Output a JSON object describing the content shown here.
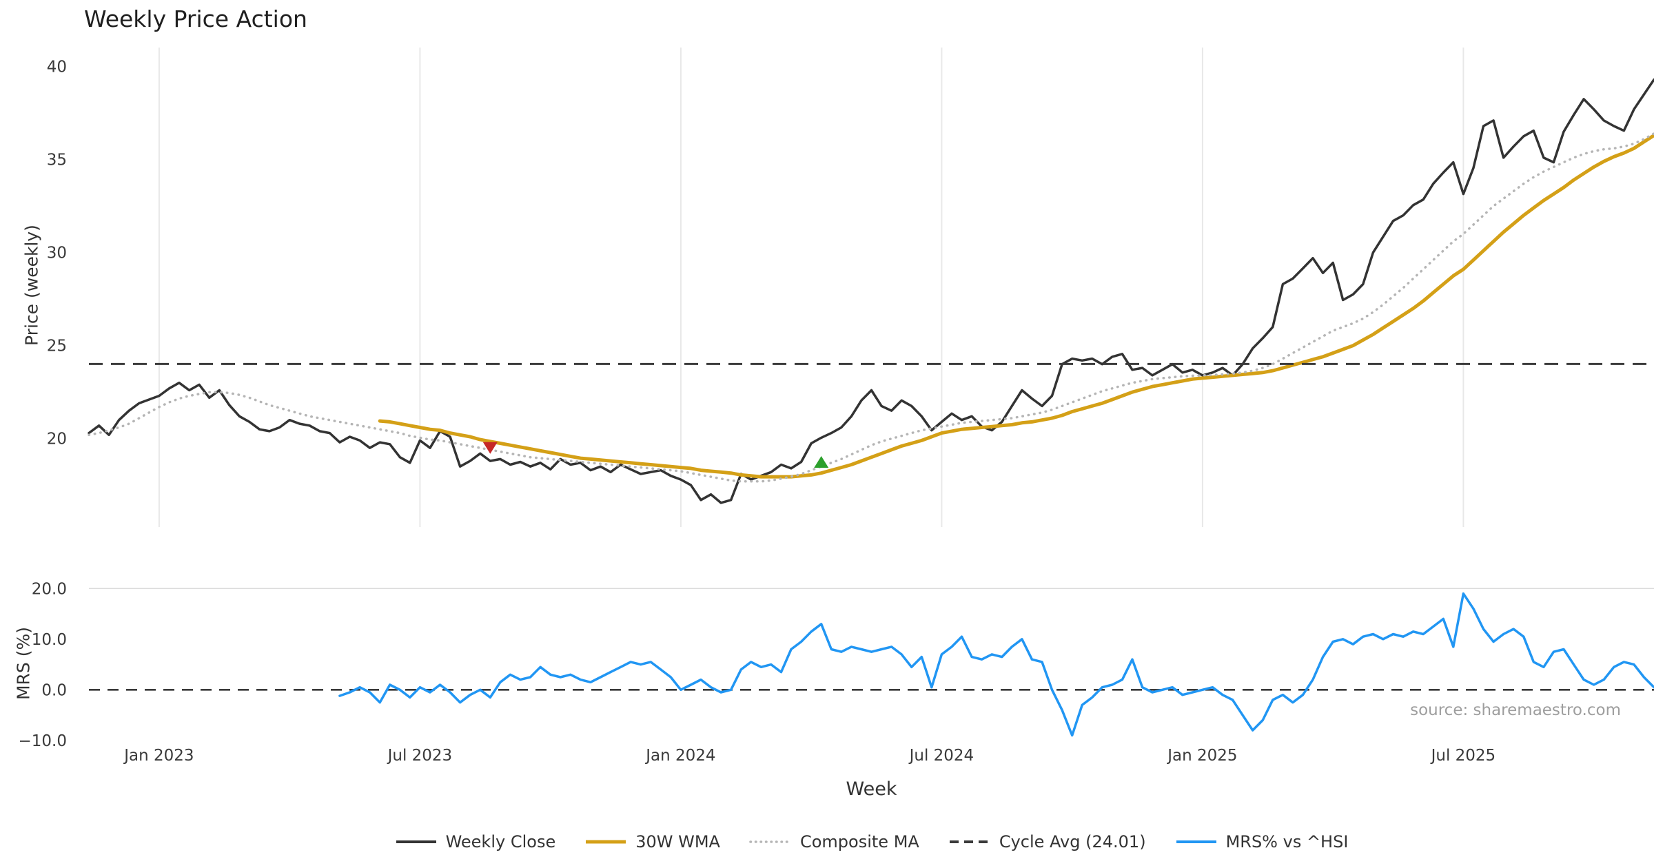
{
  "chart_data": {
    "type": "line",
    "title": "Weekly Price Action",
    "xlabel": "Week",
    "source": "source: sharemaestro.com",
    "legend_position": "bottom-center",
    "grid": "vertical-major-only",
    "weeks_total": 157,
    "x_ticks": [
      {
        "index": 7,
        "label": "Jan 2023"
      },
      {
        "index": 33,
        "label": "Jul 2023"
      },
      {
        "index": 59,
        "label": "Jan 2024"
      },
      {
        "index": 85,
        "label": "Jul 2024"
      },
      {
        "index": 111,
        "label": "Jan 2025"
      },
      {
        "index": 137,
        "label": "Jul 2025"
      }
    ],
    "panels": {
      "price": {
        "ylabel": "Price (weekly)",
        "ylim": [
          15.25,
          41.02
        ],
        "yticks": [
          20,
          25,
          30,
          35,
          40
        ],
        "ytick_labels": [
          "20",
          "25",
          "30",
          "35",
          "40"
        ]
      },
      "mrs": {
        "ylabel": "MRS (%)",
        "ylim": [
          -10.84,
          21.27
        ],
        "yticks": [
          -10,
          0,
          10,
          20
        ],
        "ytick_labels": [
          "−10.0",
          "0.0",
          "10.0",
          "20.0"
        ],
        "zero_line": "dashed",
        "gridline_at": 20
      }
    },
    "series": [
      {
        "name": "Weekly Close",
        "panel": "price",
        "color": "#333333",
        "style": "solid",
        "width": 3.5,
        "start": 0,
        "values": [
          20.3,
          20.7,
          20.2,
          21.0,
          21.5,
          21.9,
          22.1,
          22.3,
          22.7,
          23.0,
          22.6,
          22.9,
          22.2,
          22.6,
          21.8,
          21.2,
          20.9,
          20.5,
          20.4,
          20.6,
          21.0,
          20.8,
          20.7,
          20.4,
          20.3,
          19.8,
          20.1,
          19.9,
          19.5,
          19.8,
          19.7,
          19.0,
          18.7,
          19.9,
          19.5,
          20.4,
          20.1,
          18.5,
          18.8,
          19.2,
          18.8,
          18.9,
          18.6,
          18.75,
          18.5,
          18.7,
          18.35,
          18.9,
          18.6,
          18.7,
          18.3,
          18.5,
          18.2,
          18.6,
          18.35,
          18.1,
          18.2,
          18.3,
          18.0,
          17.8,
          17.5,
          16.7,
          17.0,
          16.55,
          16.7,
          18.1,
          17.8,
          18.0,
          18.2,
          18.6,
          18.4,
          18.75,
          19.75,
          20.05,
          20.3,
          20.6,
          21.2,
          22.05,
          22.6,
          21.75,
          21.5,
          22.05,
          21.75,
          21.2,
          20.45,
          20.9,
          21.35,
          21.0,
          21.2,
          20.65,
          20.45,
          20.9,
          21.75,
          22.6,
          22.15,
          21.75,
          22.3,
          24.0,
          24.3,
          24.2,
          24.3,
          24.0,
          24.4,
          24.55,
          23.7,
          23.8,
          23.4,
          23.7,
          24.0,
          23.55,
          23.7,
          23.4,
          23.55,
          23.8,
          23.4,
          24.0,
          24.85,
          25.4,
          26.0,
          28.3,
          28.6,
          29.15,
          29.7,
          28.9,
          29.45,
          27.45,
          27.75,
          28.3,
          30.0,
          30.85,
          31.7,
          32.0,
          32.55,
          32.85,
          33.7,
          34.3,
          34.85,
          33.15,
          34.55,
          36.8,
          37.1,
          35.1,
          35.7,
          36.25,
          36.55,
          35.1,
          34.85,
          36.5,
          37.4,
          38.25,
          37.7,
          37.1,
          36.8,
          36.55,
          37.7,
          38.5,
          39.3
        ]
      },
      {
        "name": "30W WMA",
        "panel": "price",
        "color": "#D4A017",
        "style": "solid",
        "width": 5,
        "start": 29,
        "values": [
          20.95,
          20.9,
          20.8,
          20.7,
          20.6,
          20.5,
          20.45,
          20.3,
          20.2,
          20.1,
          19.95,
          19.85,
          19.75,
          19.65,
          19.55,
          19.45,
          19.35,
          19.25,
          19.15,
          19.05,
          18.95,
          18.9,
          18.85,
          18.8,
          18.75,
          18.7,
          18.65,
          18.6,
          18.55,
          18.5,
          18.45,
          18.4,
          18.3,
          18.25,
          18.2,
          18.15,
          18.05,
          18.0,
          17.95,
          17.95,
          17.95,
          17.95,
          18.0,
          18.05,
          18.15,
          18.3,
          18.45,
          18.6,
          18.8,
          19.0,
          19.2,
          19.4,
          19.6,
          19.75,
          19.9,
          20.1,
          20.3,
          20.4,
          20.5,
          20.55,
          20.6,
          20.65,
          20.7,
          20.75,
          20.85,
          20.9,
          21.0,
          21.1,
          21.25,
          21.45,
          21.6,
          21.75,
          21.9,
          22.1,
          22.3,
          22.5,
          22.65,
          22.8,
          22.9,
          23.0,
          23.1,
          23.2,
          23.25,
          23.3,
          23.35,
          23.4,
          23.45,
          23.5,
          23.55,
          23.65,
          23.8,
          23.95,
          24.1,
          24.25,
          24.4,
          24.6,
          24.8,
          25.0,
          25.3,
          25.6,
          25.95,
          26.3,
          26.65,
          27.0,
          27.4,
          27.85,
          28.3,
          28.75,
          29.1,
          29.6,
          30.1,
          30.6,
          31.1,
          31.55,
          32.0,
          32.4,
          32.8,
          33.15,
          33.5,
          33.9,
          34.25,
          34.6,
          34.9,
          35.15,
          35.35,
          35.6,
          35.95,
          36.3
        ]
      },
      {
        "name": "Composite MA",
        "panel": "price",
        "color": "#B5B5B5",
        "style": "dotted",
        "width": 3.5,
        "start": 0,
        "values": [
          20.2,
          20.3,
          20.45,
          20.6,
          20.8,
          21.1,
          21.4,
          21.7,
          21.95,
          22.15,
          22.3,
          22.4,
          22.5,
          22.5,
          22.45,
          22.35,
          22.2,
          22.0,
          21.8,
          21.65,
          21.5,
          21.35,
          21.2,
          21.1,
          21.0,
          20.9,
          20.8,
          20.7,
          20.6,
          20.5,
          20.4,
          20.3,
          20.15,
          20.05,
          19.95,
          19.9,
          19.8,
          19.7,
          19.6,
          19.5,
          19.4,
          19.3,
          19.2,
          19.1,
          19.0,
          18.95,
          18.9,
          18.85,
          18.8,
          18.75,
          18.7,
          18.65,
          18.6,
          18.55,
          18.5,
          18.45,
          18.4,
          18.35,
          18.3,
          18.25,
          18.15,
          18.05,
          17.95,
          17.85,
          17.75,
          17.7,
          17.7,
          17.7,
          17.75,
          17.85,
          17.95,
          18.1,
          18.3,
          18.5,
          18.7,
          18.9,
          19.15,
          19.4,
          19.65,
          19.85,
          20.0,
          20.15,
          20.3,
          20.45,
          20.55,
          20.65,
          20.75,
          20.85,
          20.9,
          20.95,
          21.0,
          21.05,
          21.1,
          21.2,
          21.3,
          21.4,
          21.55,
          21.75,
          21.95,
          22.15,
          22.35,
          22.55,
          22.7,
          22.85,
          23.0,
          23.1,
          23.2,
          23.25,
          23.3,
          23.35,
          23.38,
          23.4,
          23.42,
          23.45,
          23.5,
          23.55,
          23.65,
          23.8,
          24.0,
          24.3,
          24.6,
          24.9,
          25.2,
          25.5,
          25.8,
          26.0,
          26.2,
          26.45,
          26.8,
          27.2,
          27.65,
          28.1,
          28.6,
          29.1,
          29.6,
          30.1,
          30.6,
          31.0,
          31.5,
          32.0,
          32.5,
          32.9,
          33.3,
          33.7,
          34.05,
          34.35,
          34.6,
          34.85,
          35.1,
          35.3,
          35.45,
          35.55,
          35.6,
          35.7,
          35.85,
          36.1,
          36.4
        ]
      },
      {
        "name": "Cycle Avg (24.01)",
        "panel": "price",
        "color": "#3A3A3A",
        "style": "dashed",
        "width": 3,
        "hline": 24.01
      },
      {
        "name": "MRS% vs ^HSI",
        "panel": "mrs",
        "color": "#2196F3",
        "style": "solid",
        "width": 3.5,
        "start": 25,
        "values": [
          -1.2,
          -0.5,
          0.5,
          -0.5,
          -2.5,
          1.0,
          0.0,
          -1.5,
          0.5,
          -0.5,
          1.0,
          -0.5,
          -2.5,
          -1.0,
          0.0,
          -1.5,
          1.5,
          3.0,
          2.0,
          2.5,
          4.5,
          3.0,
          2.5,
          3.0,
          2.0,
          1.5,
          2.5,
          3.5,
          4.5,
          5.5,
          5.0,
          5.5,
          4.0,
          2.5,
          0.0,
          1.0,
          2.0,
          0.5,
          -0.5,
          0.0,
          4.0,
          5.5,
          4.5,
          5.0,
          3.5,
          8.0,
          9.5,
          11.5,
          13.0,
          8.0,
          7.5,
          8.5,
          8.0,
          7.5,
          8.0,
          8.5,
          7.0,
          4.5,
          6.5,
          0.5,
          7.0,
          8.5,
          10.5,
          6.5,
          6.0,
          7.0,
          6.5,
          8.5,
          10.0,
          6.0,
          5.5,
          0.0,
          -4.0,
          -9.0,
          -3.0,
          -1.5,
          0.5,
          1.0,
          2.0,
          6.0,
          0.5,
          -0.5,
          0.0,
          0.5,
          -1.0,
          -0.5,
          0.0,
          0.5,
          -1.0,
          -2.0,
          -5.0,
          -8.0,
          -6.0,
          -2.0,
          -1.0,
          -2.5,
          -1.0,
          2.0,
          6.5,
          9.5,
          10.0,
          9.0,
          10.5,
          11.0,
          10.0,
          11.0,
          10.5,
          11.5,
          11.0,
          12.5,
          14.0,
          8.5,
          19.0,
          16.0,
          12.0,
          9.5,
          11.0,
          12.0,
          10.5,
          5.5,
          4.5,
          7.5,
          8.0,
          5.0,
          2.0,
          1.0,
          2.0,
          4.5,
          5.5,
          5.0,
          2.5,
          0.5
        ]
      }
    ],
    "markers": [
      {
        "name": "sell-signal-marker",
        "shape": "triangle-down",
        "color": "#C62828",
        "index": 40,
        "value": 19.5
      },
      {
        "name": "buy-signal-marker",
        "shape": "triangle-up",
        "color": "#2CA02C",
        "index": 73,
        "value": 18.75
      }
    ]
  }
}
